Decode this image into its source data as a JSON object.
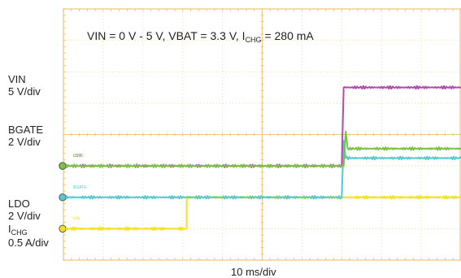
{
  "chart_data": {
    "type": "line",
    "title": {
      "main": "VIN = 0 V - 5 V, VBAT = 3.3 V, I",
      "sub": "CHG",
      "tail": " = 280 mA"
    },
    "xlabel": "10 ms/div",
    "x_divisions": 10,
    "y_divisions": 8,
    "grid": true,
    "series": [
      {
        "name": "VIN",
        "scale": "5 V/div",
        "color": "#f2e21c",
        "marker": "VIN",
        "ground_div": 1.0,
        "x": [
          0,
          3.1,
          3.1,
          10
        ],
        "y": [
          0,
          0,
          1.0,
          1.0
        ]
      },
      {
        "name": "BGATE",
        "scale": "2 V/div",
        "color": "#56c9cf",
        "marker": "BGATE",
        "ground_div": 2.0,
        "x": [
          0,
          7.0,
          7.05,
          7.1,
          10
        ],
        "y": [
          0,
          0,
          1.8,
          1.25,
          1.25
        ]
      },
      {
        "name": "LDO",
        "scale": "2 V/div",
        "color": "#b44ab0",
        "marker": "LDO",
        "ground_div": 3.0,
        "x": [
          0,
          7.0,
          7.05,
          10
        ],
        "y": [
          0,
          0,
          2.5,
          2.5
        ]
      },
      {
        "name": "I",
        "name_sub": "CHG",
        "scale": "0.5 A/div",
        "color": "#7cc242",
        "marker": "ICHG",
        "ground_div": 3.0,
        "x": [
          0,
          7.05,
          7.1,
          7.15,
          10
        ],
        "y": [
          0,
          0,
          1.1,
          0.55,
          0.55
        ]
      }
    ]
  }
}
